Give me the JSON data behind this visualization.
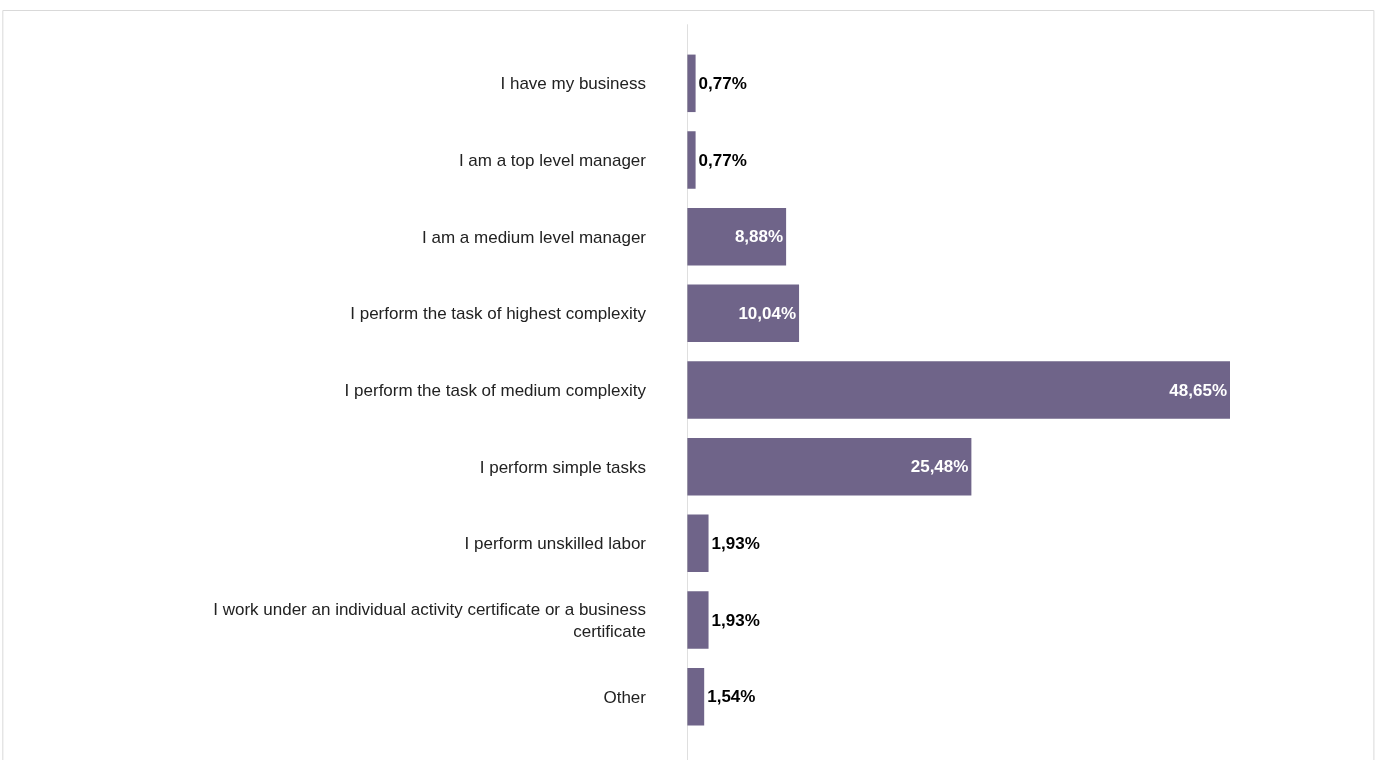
{
  "chart_data": {
    "type": "bar",
    "orientation": "horizontal",
    "categories": [
      "I have my business",
      "I am a top level manager",
      "I am a medium level manager",
      "I perform the task of highest complexity",
      "I perform the task of medium complexity",
      "I perform simple tasks",
      "I perform unskilled labor",
      "I work under an individual activity certificate or a business certificate",
      "Other"
    ],
    "values": [
      0.77,
      0.77,
      8.88,
      10.04,
      48.65,
      25.48,
      1.93,
      1.93,
      1.54
    ],
    "value_labels": [
      "0,77%",
      "0,77%",
      "8,88%",
      "10,04%",
      "48,65%",
      "25,48%",
      "1,93%",
      "1,93%",
      "1,54%"
    ],
    "color": "#6f6489",
    "legend": false,
    "tick_labels": "y"
  }
}
